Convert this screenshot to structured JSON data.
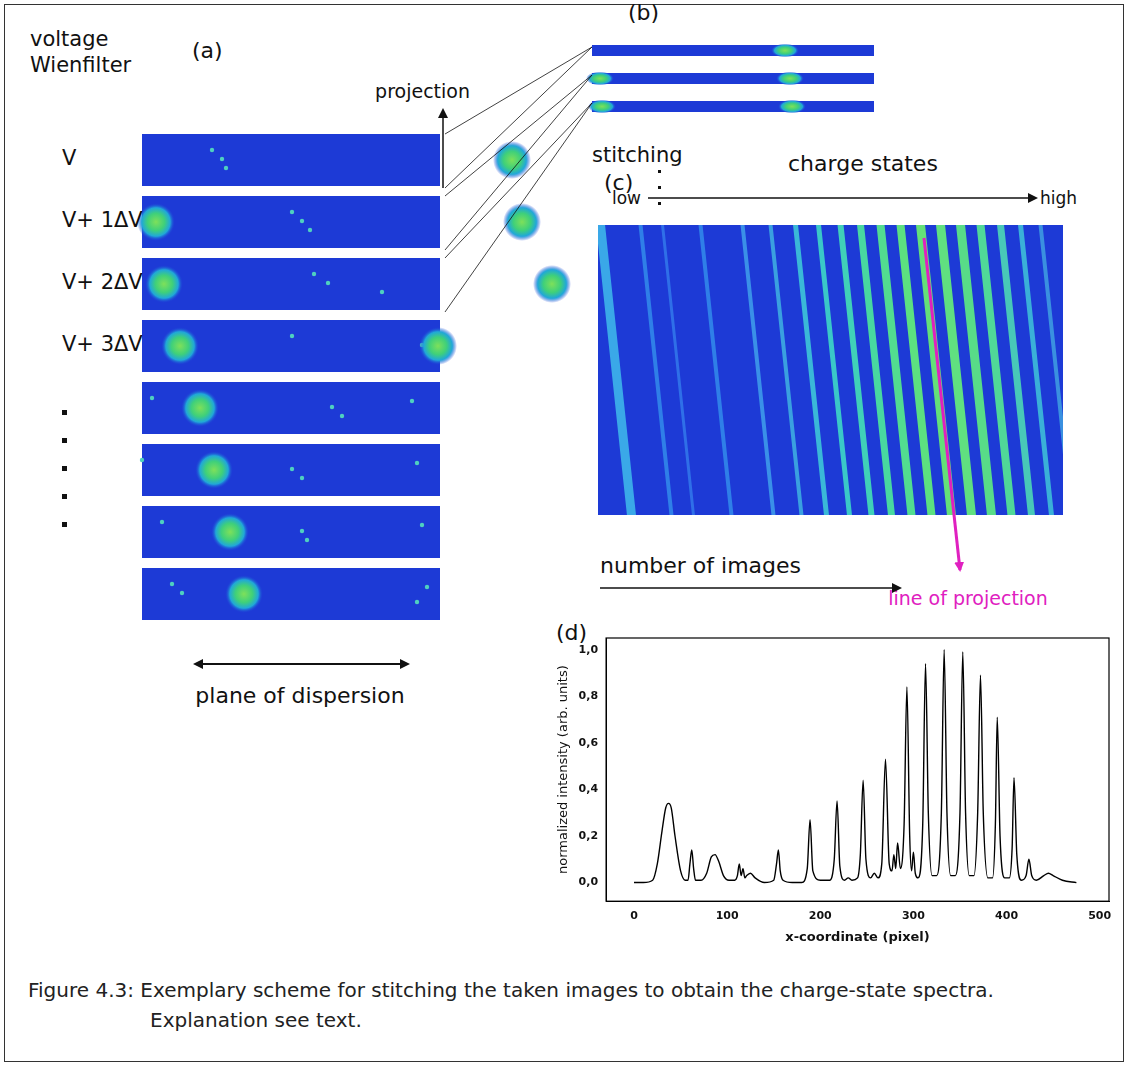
{
  "panel_a": {
    "label": "(a)",
    "heading": "voltage Wienfilter",
    "row_labels": [
      "V",
      "V+ 1ΔV",
      "V+ 2ΔV",
      "V+ 3ΔV"
    ],
    "projection": "projection",
    "axis_label": "plane of dispersion"
  },
  "panel_b": {
    "label": "(b)",
    "stitching": "stitching"
  },
  "panel_c": {
    "label": "(c)",
    "heading": "charge states",
    "low": "low",
    "high": "high",
    "x_label": "number of images",
    "line_label": "line of projection"
  },
  "chart_data": {
    "panel_label": "(d)",
    "type": "line",
    "x_label": "x-coordinate (pixel)",
    "y_label": "normalized intensity (arb. units)",
    "x": [
      0,
      10,
      20,
      25,
      30,
      34,
      37,
      40,
      44,
      50,
      55,
      58,
      60,
      62,
      64,
      66,
      72,
      78,
      83,
      87,
      91,
      96,
      102,
      108,
      111,
      113,
      115,
      117,
      119,
      121,
      125,
      130,
      140,
      150,
      153,
      155,
      157,
      160,
      170,
      180,
      186,
      189,
      192,
      200,
      210,
      215,
      218,
      221,
      226,
      230,
      234,
      240,
      243,
      246,
      249,
      254,
      258,
      262,
      266,
      270,
      274,
      277,
      279,
      281,
      283,
      286,
      290,
      293,
      296,
      298,
      300,
      302,
      305,
      310,
      313,
      316,
      320,
      325,
      330,
      333,
      336,
      340,
      345,
      350,
      353,
      356,
      360,
      365,
      369,
      372,
      375,
      380,
      385,
      388,
      390,
      393,
      398,
      403,
      406,
      408,
      411,
      416,
      421,
      424,
      427,
      432,
      440,
      445,
      450,
      460,
      475
    ],
    "values": [
      0,
      0,
      0.01,
      0.08,
      0.22,
      0.32,
      0.34,
      0.32,
      0.2,
      0.05,
      0.01,
      0.01,
      0.08,
      0.14,
      0.06,
      0.01,
      0.01,
      0.04,
      0.11,
      0.12,
      0.09,
      0.03,
      0.01,
      0.01,
      0.03,
      0.08,
      0.03,
      0.06,
      0.02,
      0.03,
      0.04,
      0.02,
      0,
      0.01,
      0.08,
      0.14,
      0.05,
      0.01,
      0,
      0,
      0.06,
      0.27,
      0.05,
      0.01,
      0.01,
      0.1,
      0.35,
      0.07,
      0.01,
      0.02,
      0.01,
      0.02,
      0.12,
      0.44,
      0.1,
      0.02,
      0.04,
      0.02,
      0.08,
      0.53,
      0.08,
      0.05,
      0.12,
      0.06,
      0.17,
      0.06,
      0.25,
      0.84,
      0.2,
      0.05,
      0.13,
      0.04,
      0.02,
      0.25,
      0.94,
      0.3,
      0.03,
      0.03,
      0.3,
      1.0,
      0.3,
      0.03,
      0.03,
      0.3,
      0.99,
      0.3,
      0.03,
      0.03,
      0.3,
      0.89,
      0.3,
      0.02,
      0.02,
      0.25,
      0.71,
      0.2,
      0.02,
      0.02,
      0.15,
      0.45,
      0.12,
      0.01,
      0.03,
      0.1,
      0.03,
      0.01,
      0.03,
      0.04,
      0.03,
      0.01,
      0
    ],
    "color": "#000000",
    "xlim": [
      -30,
      510
    ],
    "xticks": [
      0,
      100,
      200,
      300,
      400,
      500
    ],
    "ylim": [
      -0.08,
      1.05
    ],
    "yticks": [
      {
        "value": 0,
        "label": "0,0"
      },
      {
        "value": 0.2,
        "label": "0,2"
      },
      {
        "value": 0.4,
        "label": "0,4"
      },
      {
        "value": 0.6,
        "label": "0,6"
      },
      {
        "value": 0.8,
        "label": "0,8"
      },
      {
        "value": 1.0,
        "label": "1,0"
      }
    ],
    "grid": false
  },
  "caption": "Figure 4.3: Exemplary scheme for stitching the taken images to obtain the charge-state spectra. Explanation see text."
}
